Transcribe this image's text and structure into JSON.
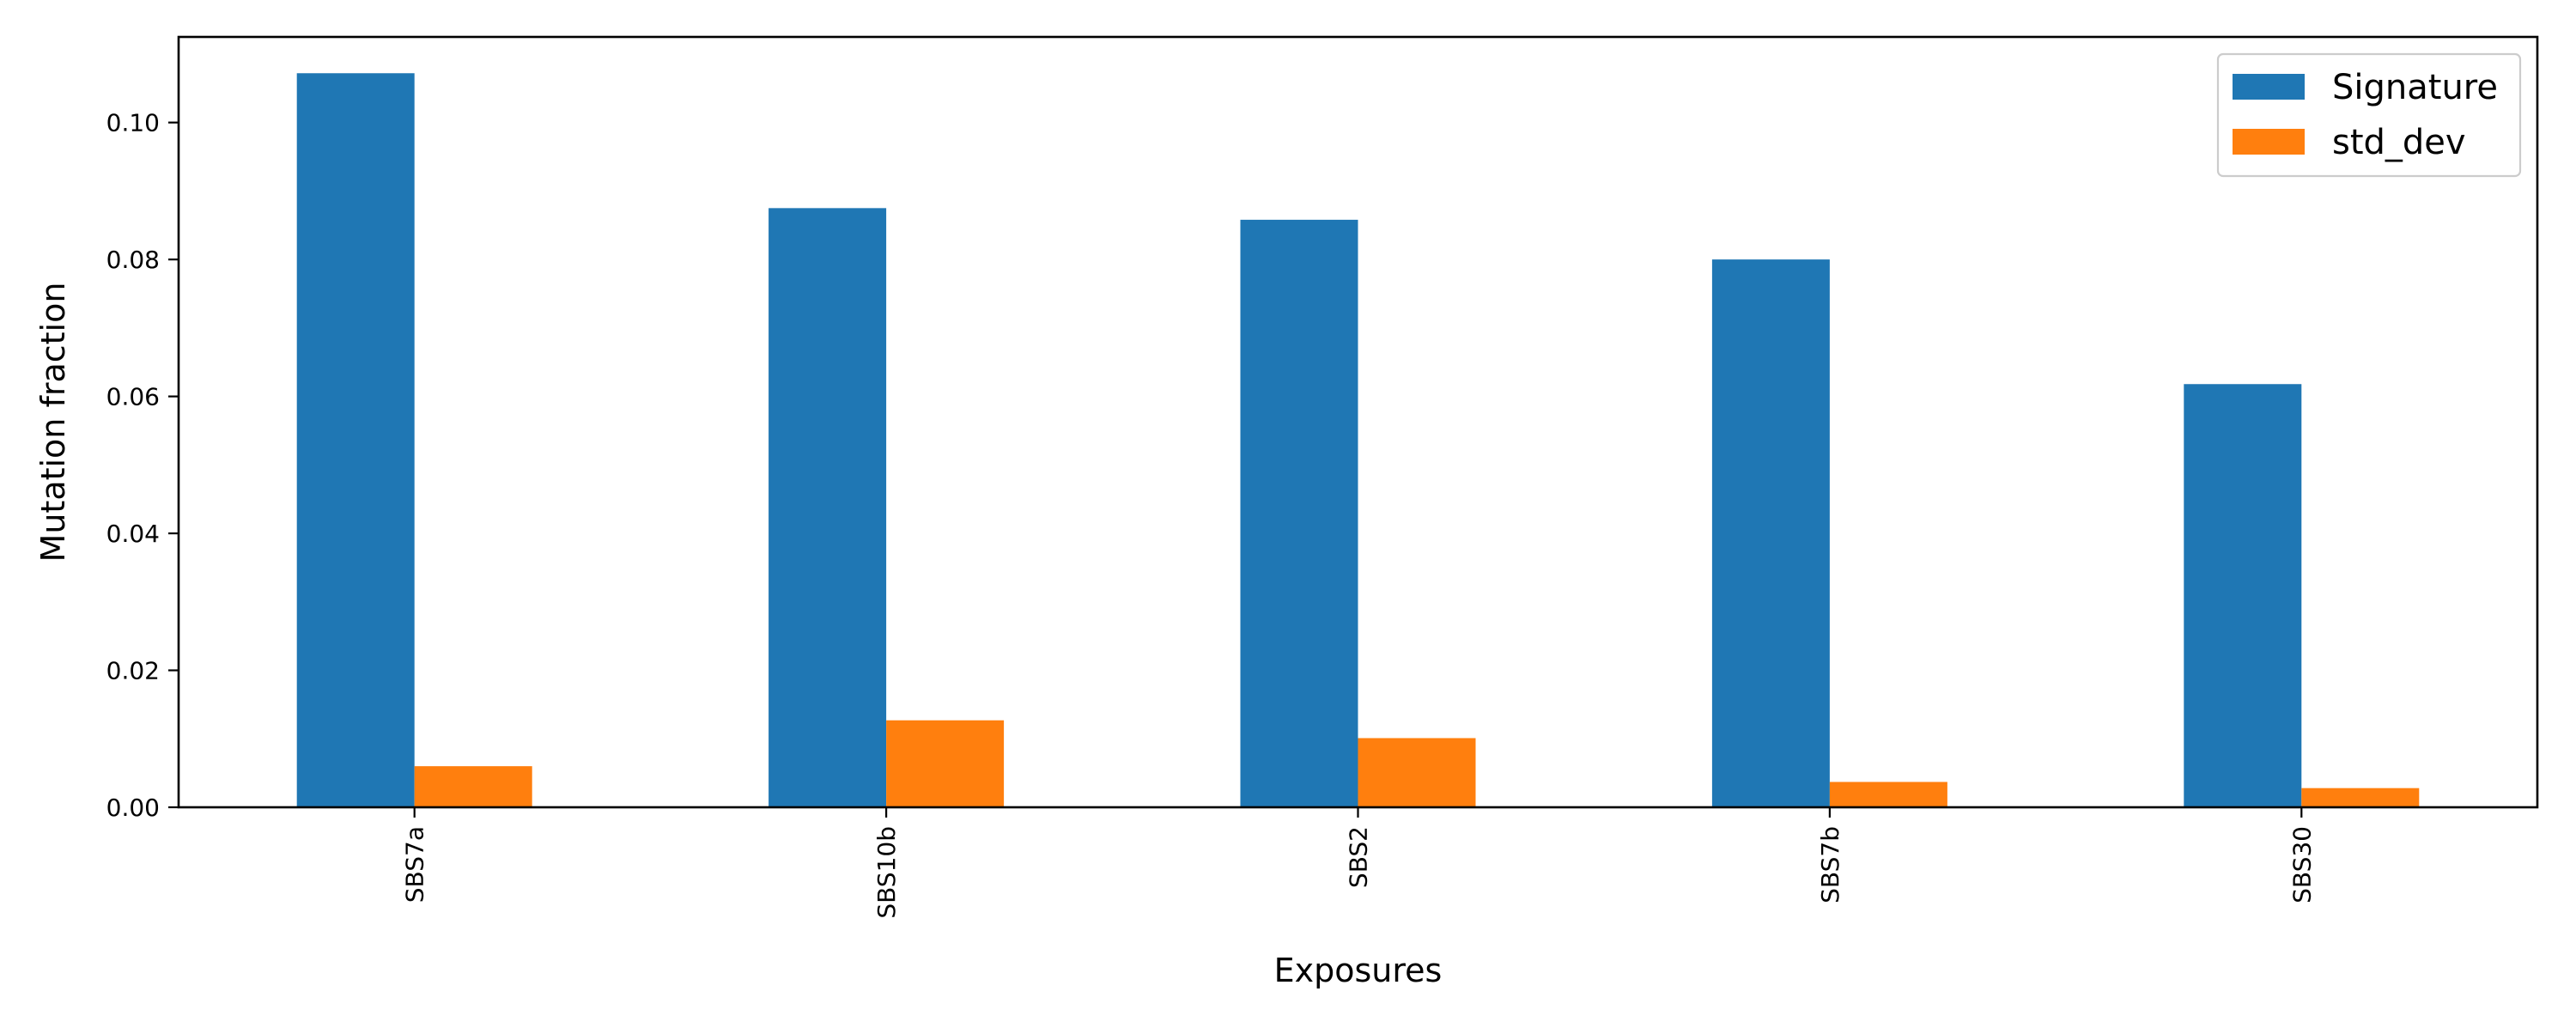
{
  "chart_data": {
    "type": "bar",
    "title": "",
    "xlabel": "Exposures",
    "ylabel": "Mutation fraction",
    "categories": [
      "SBS7a",
      "SBS10b",
      "SBS2",
      "SBS7b",
      "SBS30"
    ],
    "series": [
      {
        "name": "Signature",
        "color": "#1f77b4",
        "values": [
          0.1072,
          0.0875,
          0.0858,
          0.08,
          0.0618
        ]
      },
      {
        "name": "std_dev",
        "color": "#ff7f0e",
        "values": [
          0.006,
          0.0127,
          0.0101,
          0.0037,
          0.0028
        ]
      }
    ],
    "ylim": [
      0,
      0.1125
    ],
    "yticks": [
      0.0,
      0.02,
      0.04,
      0.06,
      0.08,
      0.1
    ],
    "ytick_labels": [
      "0.00",
      "0.02",
      "0.04",
      "0.06",
      "0.08",
      "0.10"
    ],
    "xtick_rotation": "vertical",
    "grid": false,
    "legend_position": "top-right"
  }
}
